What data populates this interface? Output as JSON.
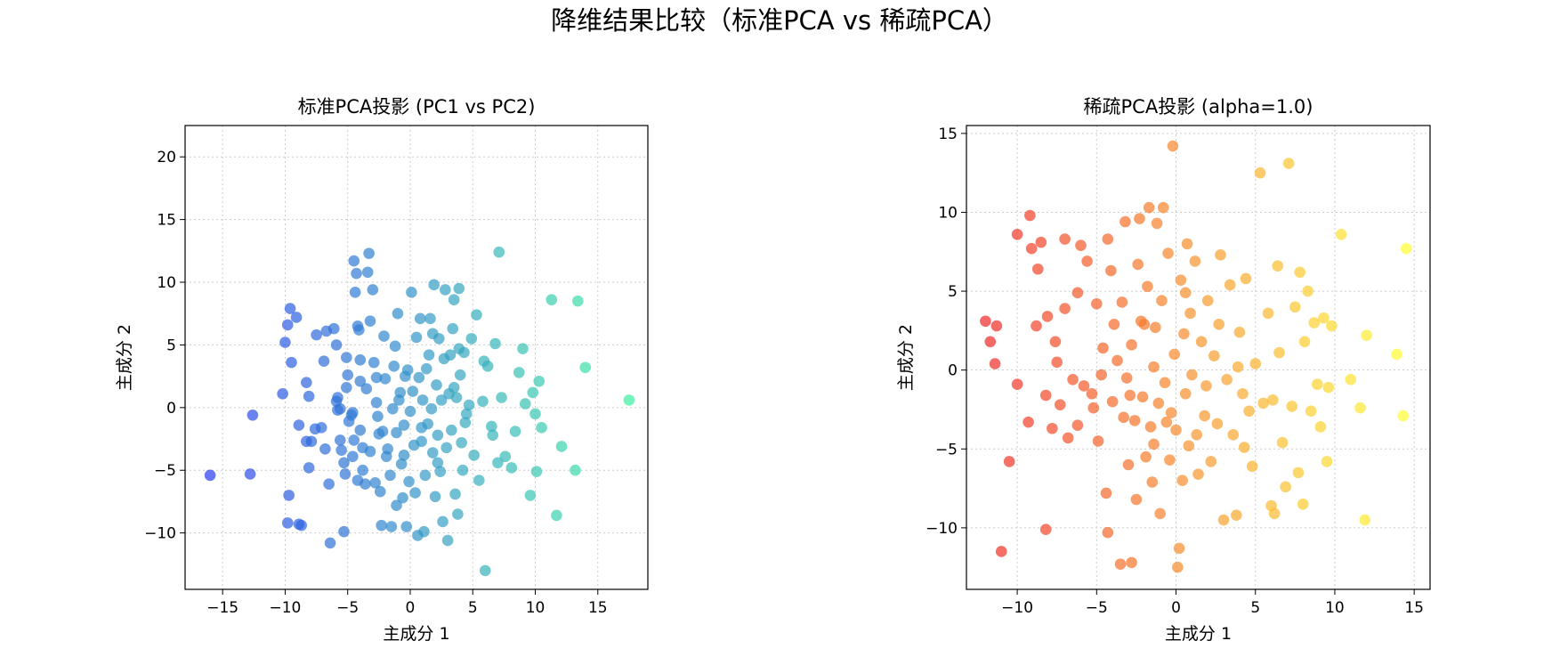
{
  "figure": {
    "title": "降维结果比较（标准PCA vs 稀疏PCA）"
  },
  "chart_data": [
    {
      "type": "scatter",
      "title": "标准PCA投影 (PC1 vs PC2)",
      "xlabel": "主成分 1",
      "ylabel": "主成分 2",
      "xlim": [
        -18,
        19
      ],
      "ylim": [
        -14.5,
        22.5
      ],
      "xticks": [
        -15,
        -10,
        -5,
        0,
        5,
        10,
        15
      ],
      "yticks": [
        -10,
        -5,
        0,
        5,
        10,
        15,
        20
      ],
      "tick_labels_x": [
        "−15",
        "−10",
        "−5",
        "0",
        "5",
        "10",
        "15"
      ],
      "tick_labels_y": [
        "−10",
        "−5",
        "0",
        "5",
        "10",
        "15",
        "20"
      ],
      "grid": true,
      "colormap": "winter",
      "color_low": "#2a3cf0",
      "color_high": "#3cf0a0",
      "alpha": 0.7,
      "points": [
        [
          -16,
          -5.4
        ],
        [
          -12.8,
          -5.3
        ],
        [
          -12.6,
          -0.6
        ],
        [
          -10.2,
          1.1
        ],
        [
          -9.8,
          -9.2
        ],
        [
          -9.7,
          -7
        ],
        [
          -9.5,
          3.6
        ],
        [
          -9.6,
          7.9
        ],
        [
          -9.8,
          6.6
        ],
        [
          -10,
          5.2
        ],
        [
          -9.1,
          7.2
        ],
        [
          -8.9,
          -9.3
        ],
        [
          -8.7,
          -9.4
        ],
        [
          -8.9,
          -1.4
        ],
        [
          -8.3,
          2
        ],
        [
          -8.1,
          0.9
        ],
        [
          -8.1,
          -4.8
        ],
        [
          -8.3,
          -2.7
        ],
        [
          -7.9,
          -2.7
        ],
        [
          -7.6,
          -1.7
        ],
        [
          -7.5,
          5.8
        ],
        [
          -7.1,
          -1.6
        ],
        [
          -6.9,
          3.7
        ],
        [
          -6.7,
          6.1
        ],
        [
          -6.4,
          -10.8
        ],
        [
          -6.5,
          -6.1
        ],
        [
          -6.1,
          6.3
        ],
        [
          -5.9,
          5
        ],
        [
          -5.8,
          0.8
        ],
        [
          -5.9,
          0.5
        ],
        [
          -5.8,
          -0.2
        ],
        [
          -5.6,
          -0.1
        ],
        [
          -5.5,
          -3.4
        ],
        [
          -5.6,
          -2.6
        ],
        [
          -5.3,
          -4.4
        ],
        [
          -5.3,
          -9.9
        ],
        [
          -5.2,
          -5.3
        ],
        [
          -5.1,
          1.6
        ],
        [
          -5.1,
          4
        ],
        [
          -5,
          2.6
        ],
        [
          -4.9,
          -1.1
        ],
        [
          -4.7,
          -0.6
        ],
        [
          -4.6,
          -0.4
        ],
        [
          -4.6,
          -3.9
        ],
        [
          -4.5,
          -2.6
        ],
        [
          -4.5,
          11.7
        ],
        [
          -4.4,
          9.2
        ],
        [
          -4.3,
          10.7
        ],
        [
          -4.2,
          6.5
        ],
        [
          -4.1,
          6.2
        ],
        [
          -4,
          3.8
        ],
        [
          -4,
          2.1
        ],
        [
          -4,
          -1.8
        ],
        [
          -3.8,
          -3.2
        ],
        [
          -3.8,
          -5
        ],
        [
          -3.6,
          -6.1
        ],
        [
          -3.5,
          1.5
        ],
        [
          -3.4,
          10.8
        ],
        [
          -3.3,
          12.3
        ],
        [
          -3.2,
          6.9
        ],
        [
          -3,
          9.4
        ],
        [
          -2.9,
          3.6
        ],
        [
          -2.8,
          -6
        ],
        [
          -2.7,
          2.4
        ],
        [
          -2.6,
          -0.7
        ],
        [
          -2.5,
          -2.1
        ],
        [
          -2.4,
          -6.7
        ],
        [
          -2.3,
          -9.4
        ],
        [
          -2.2,
          -1.9
        ],
        [
          -2.1,
          5.7
        ],
        [
          -2,
          2.3
        ],
        [
          -1.9,
          -3.9
        ],
        [
          -1.8,
          -3.3
        ],
        [
          -1.6,
          -5.4
        ],
        [
          -1.5,
          -9.5
        ],
        [
          -1.4,
          -0.1
        ],
        [
          -1.3,
          3.3
        ],
        [
          -1.2,
          4.9
        ],
        [
          -1.1,
          -2
        ],
        [
          -1,
          7.5
        ],
        [
          -0.9,
          0.6
        ],
        [
          -0.8,
          1.2
        ],
        [
          -0.7,
          -4.5
        ],
        [
          -0.6,
          -7.2
        ],
        [
          -0.5,
          -1.4
        ],
        [
          -0.4,
          2.5
        ],
        [
          -0.3,
          -9.5
        ],
        [
          -0.2,
          3
        ],
        [
          -0.1,
          -5.9
        ],
        [
          0,
          -0.3
        ],
        [
          0.1,
          9.2
        ],
        [
          0.2,
          1.3
        ],
        [
          0.3,
          -3
        ],
        [
          0.5,
          5.6
        ],
        [
          0.6,
          -10.2
        ],
        [
          0.7,
          2.4
        ],
        [
          0.8,
          7.1
        ],
        [
          0.9,
          -2.7
        ],
        [
          1,
          0.6
        ],
        [
          1.1,
          -9.9
        ],
        [
          1.2,
          -5.4
        ],
        [
          1.3,
          3.1
        ],
        [
          1.4,
          -1.3
        ],
        [
          1.5,
          4.2
        ],
        [
          1.6,
          7.1
        ],
        [
          1.7,
          -0.1
        ],
        [
          1.8,
          -3.6
        ],
        [
          1.9,
          9.8
        ],
        [
          2,
          -7.1
        ],
        [
          2.1,
          1.8
        ],
        [
          2.2,
          -2.2
        ],
        [
          2.3,
          5.5
        ],
        [
          2.4,
          -5.1
        ],
        [
          2.5,
          0.6
        ],
        [
          2.6,
          -9.1
        ],
        [
          2.7,
          3.9
        ],
        [
          2.8,
          9.4
        ],
        [
          2.9,
          -3.2
        ],
        [
          3,
          -10.6
        ],
        [
          3.1,
          1.1
        ],
        [
          3.2,
          4.2
        ],
        [
          3.3,
          -1.8
        ],
        [
          3.4,
          6.3
        ],
        [
          3.5,
          8.6
        ],
        [
          3.6,
          -6.9
        ],
        [
          3.7,
          0.8
        ],
        [
          3.8,
          -8.5
        ],
        [
          3.9,
          9.5
        ],
        [
          4,
          2.6
        ],
        [
          4.1,
          -2.8
        ],
        [
          4.2,
          -5
        ],
        [
          4.3,
          4.4
        ],
        [
          4.5,
          -0.5
        ],
        [
          4.7,
          0.2
        ],
        [
          4.9,
          5.5
        ],
        [
          5.1,
          -3.8
        ],
        [
          5.3,
          7.4
        ],
        [
          5.5,
          -5.8
        ],
        [
          5.8,
          0.5
        ],
        [
          6,
          -13
        ],
        [
          6.2,
          3.3
        ],
        [
          6.5,
          -1.5
        ],
        [
          6.8,
          5.1
        ],
        [
          7,
          -4.4
        ],
        [
          7.1,
          12.4
        ],
        [
          7.3,
          0.8
        ],
        [
          7.6,
          -3.9
        ],
        [
          8.1,
          -4.8
        ],
        [
          8.4,
          -1.9
        ],
        [
          8.7,
          2.8
        ],
        [
          9,
          4.7
        ],
        [
          9.2,
          0.3
        ],
        [
          9.6,
          -7
        ],
        [
          9.8,
          1.2
        ],
        [
          10,
          -0.5
        ],
        [
          10.1,
          -5.1
        ],
        [
          10.3,
          2.1
        ],
        [
          10.5,
          -1.6
        ],
        [
          11.3,
          8.6
        ],
        [
          11.7,
          -8.6
        ],
        [
          12.1,
          -3.1
        ],
        [
          13.2,
          -5
        ],
        [
          13.4,
          8.5
        ],
        [
          14,
          3.2
        ],
        [
          17.5,
          0.6
        ],
        [
          -3.2,
          -3.5
        ],
        [
          -1.1,
          -7.8
        ],
        [
          0.4,
          -6.8
        ],
        [
          3.5,
          1.6
        ],
        [
          2.2,
          -4.4
        ],
        [
          -6.8,
          -3.3
        ],
        [
          -4.2,
          -5.8
        ],
        [
          5.9,
          3.7
        ],
        [
          -2.7,
          0.4
        ],
        [
          0.9,
          -1.6
        ],
        [
          4.4,
          -1.2
        ],
        [
          1.8,
          5.9
        ],
        [
          -0.5,
          -3.8
        ],
        [
          6.6,
          -2.2
        ],
        [
          3.9,
          4.7
        ]
      ]
    },
    {
      "type": "scatter",
      "title": "稀疏PCA投影 (alpha=1.0)",
      "xlabel": "主成分 1",
      "ylabel": "主成分 2",
      "xlim": [
        -13.2,
        16
      ],
      "ylim": [
        -13.9,
        15.5
      ],
      "xticks": [
        -10,
        -5,
        0,
        5,
        10,
        15
      ],
      "yticks": [
        -10,
        -5,
        0,
        5,
        10,
        15
      ],
      "tick_labels_x": [
        "−10",
        "−5",
        "0",
        "5",
        "10",
        "15"
      ],
      "tick_labels_y": [
        "−10",
        "−5",
        "0",
        "5",
        "10",
        "15"
      ],
      "grid": true,
      "colormap": "autumn",
      "color_low": "#f02828",
      "color_high": "#ffff30",
      "alpha": 0.7,
      "points": [
        [
          -12,
          3.1
        ],
        [
          -11.7,
          1.8
        ],
        [
          -11.3,
          2.8
        ],
        [
          -11.4,
          0.4
        ],
        [
          -11,
          -11.5
        ],
        [
          -10.5,
          -5.8
        ],
        [
          -10,
          8.6
        ],
        [
          -10,
          -0.9
        ],
        [
          -9.2,
          9.8
        ],
        [
          -9.3,
          -3.3
        ],
        [
          -9.1,
          7.7
        ],
        [
          -8.7,
          6.4
        ],
        [
          -8.8,
          2.8
        ],
        [
          -8.5,
          8.1
        ],
        [
          -8.2,
          -10.1
        ],
        [
          -8.2,
          -1.6
        ],
        [
          -8.1,
          3.4
        ],
        [
          -7.6,
          1.8
        ],
        [
          -7.5,
          0.5
        ],
        [
          -7.3,
          -2.2
        ],
        [
          -7,
          3.9
        ],
        [
          -7,
          8.3
        ],
        [
          -6.8,
          -4.3
        ],
        [
          -6.5,
          -0.6
        ],
        [
          -6.2,
          -3.5
        ],
        [
          -6,
          7.9
        ],
        [
          -5.8,
          -1
        ],
        [
          -5.6,
          6.9
        ],
        [
          -5.2,
          -2.4
        ],
        [
          -5,
          4.2
        ],
        [
          -4.9,
          -4.5
        ],
        [
          -4.7,
          -0.3
        ],
        [
          -4.4,
          -7.8
        ],
        [
          -4.3,
          8.3
        ],
        [
          -4.3,
          -10.3
        ],
        [
          -4.1,
          6.3
        ],
        [
          -4,
          -2
        ],
        [
          -3.9,
          2.9
        ],
        [
          -3.7,
          0.6
        ],
        [
          -3.5,
          -12.3
        ],
        [
          -3.4,
          4.3
        ],
        [
          -3.3,
          -3
        ],
        [
          -3.2,
          9.4
        ],
        [
          -3,
          -6
        ],
        [
          -2.8,
          -12.2
        ],
        [
          -2.8,
          1.6
        ],
        [
          -2.6,
          -3.2
        ],
        [
          -2.5,
          -8.2
        ],
        [
          -2.4,
          6.7
        ],
        [
          -2.3,
          9.6
        ],
        [
          -2.2,
          3.1
        ],
        [
          -2.1,
          -1.7
        ],
        [
          -2,
          2.9
        ],
        [
          -1.9,
          -5.5
        ],
        [
          -1.7,
          10.3
        ],
        [
          -1.6,
          -3.6
        ],
        [
          -1.5,
          -7.1
        ],
        [
          -1.4,
          0.2
        ],
        [
          -1.3,
          2.7
        ],
        [
          -1.2,
          9.3
        ],
        [
          -1.1,
          -2.1
        ],
        [
          -1,
          -9.1
        ],
        [
          -0.9,
          4.4
        ],
        [
          -0.8,
          10.3
        ],
        [
          -0.7,
          -0.8
        ],
        [
          -0.6,
          -3.3
        ],
        [
          -0.5,
          7.4
        ],
        [
          -0.4,
          -5.7
        ],
        [
          -0.2,
          14.2
        ],
        [
          -0.1,
          1
        ],
        [
          0,
          -3.8
        ],
        [
          0.1,
          -12.5
        ],
        [
          0.2,
          -11.3
        ],
        [
          0.3,
          5.7
        ],
        [
          0.4,
          -7
        ],
        [
          0.5,
          2.3
        ],
        [
          0.6,
          -1.5
        ],
        [
          0.7,
          8
        ],
        [
          0.8,
          -4.8
        ],
        [
          0.9,
          3.6
        ],
        [
          1,
          -0.3
        ],
        [
          1.2,
          6.9
        ],
        [
          1.4,
          -6.6
        ],
        [
          1.6,
          1.8
        ],
        [
          1.8,
          -2.9
        ],
        [
          2,
          4.4
        ],
        [
          2.2,
          -5.8
        ],
        [
          2.4,
          0.9
        ],
        [
          2.6,
          -3.4
        ],
        [
          2.8,
          7.3
        ],
        [
          3,
          -9.5
        ],
        [
          3.2,
          -0.6
        ],
        [
          3.4,
          5.4
        ],
        [
          3.6,
          -4.1
        ],
        [
          3.8,
          -9.2
        ],
        [
          4,
          2.4
        ],
        [
          4.2,
          -1.5
        ],
        [
          4.4,
          5.8
        ],
        [
          4.6,
          -2.6
        ],
        [
          4.8,
          -6.1
        ],
        [
          5,
          0.4
        ],
        [
          5.3,
          12.5
        ],
        [
          5.5,
          -2.1
        ],
        [
          5.8,
          3.6
        ],
        [
          6,
          -8.6
        ],
        [
          6.2,
          -9.1
        ],
        [
          6.4,
          6.6
        ],
        [
          6.5,
          1.1
        ],
        [
          6.7,
          -4.6
        ],
        [
          6.9,
          -7.4
        ],
        [
          7.1,
          13.1
        ],
        [
          7.3,
          -2.3
        ],
        [
          7.5,
          4
        ],
        [
          7.7,
          -6.5
        ],
        [
          7.8,
          6.2
        ],
        [
          8,
          -8.5
        ],
        [
          8.1,
          1.8
        ],
        [
          8.3,
          5
        ],
        [
          8.5,
          -2.6
        ],
        [
          8.7,
          3
        ],
        [
          8.9,
          -0.9
        ],
        [
          9.1,
          -3.6
        ],
        [
          9.3,
          3.3
        ],
        [
          9.5,
          -5.8
        ],
        [
          9.6,
          -1.1
        ],
        [
          9.8,
          2.8
        ],
        [
          10.4,
          8.6
        ],
        [
          11,
          -0.6
        ],
        [
          11.6,
          -2.4
        ],
        [
          11.9,
          -9.5
        ],
        [
          12,
          2.2
        ],
        [
          13.9,
          1
        ],
        [
          14.3,
          -2.9
        ],
        [
          14.5,
          7.7
        ],
        [
          -6.2,
          4.9
        ],
        [
          -4.6,
          1.4
        ],
        [
          -3.1,
          -0.5
        ],
        [
          -1.8,
          5.3
        ],
        [
          0.6,
          4.9
        ],
        [
          1.9,
          -1
        ],
        [
          2.7,
          2.9
        ],
        [
          3.9,
          0.2
        ],
        [
          -2.9,
          -1.6
        ],
        [
          -0.3,
          -2.7
        ],
        [
          1.3,
          -4.1
        ],
        [
          -5.3,
          -1.5
        ],
        [
          4.3,
          -4.9
        ],
        [
          -7.8,
          -3.7
        ],
        [
          6.1,
          -1.9
        ],
        [
          -1.4,
          -4.7
        ]
      ]
    }
  ]
}
